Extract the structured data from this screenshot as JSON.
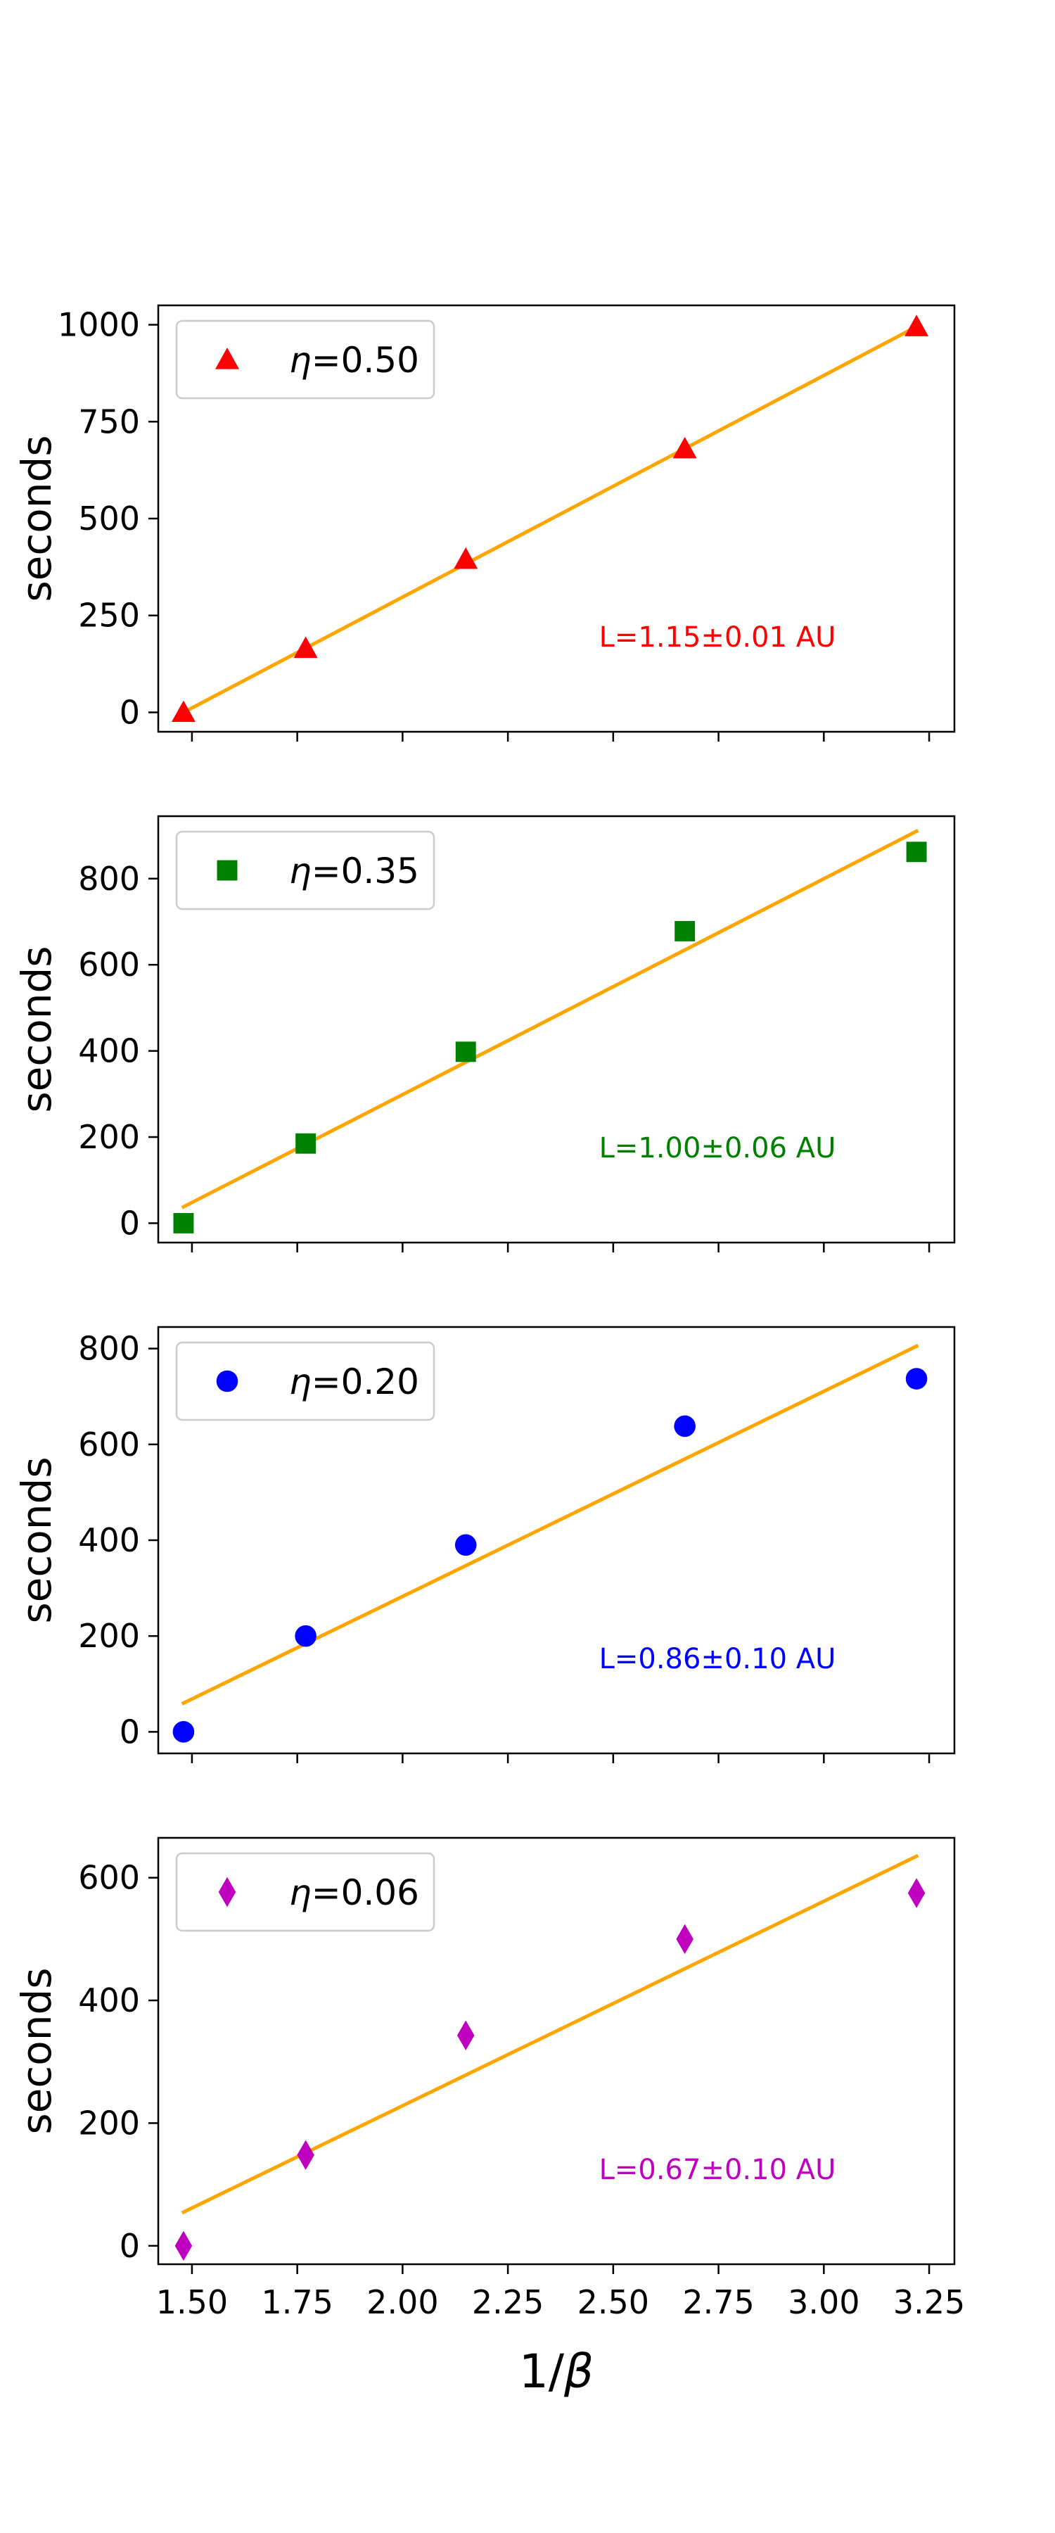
{
  "chart_data": [
    {
      "type": "scatter",
      "legend_label": "0.50",
      "legend_symbol": "η",
      "legend_position": "upper-left",
      "ylabel": "seconds",
      "xlabel": "",
      "x": [
        1.48,
        1.77,
        2.15,
        2.67,
        3.22
      ],
      "y": [
        0,
        165,
        395,
        680,
        995
      ],
      "fit": {
        "x": [
          1.48,
          3.22
        ],
        "y": [
          0,
          995
        ]
      },
      "ylim": [
        -50,
        1050
      ],
      "yticks": [
        0,
        250,
        500,
        750,
        1000
      ],
      "xlim": [
        1.42,
        3.31
      ],
      "xticks": [
        1.5,
        1.75,
        2.0,
        2.25,
        2.5,
        2.75,
        3.0,
        3.25
      ],
      "show_xticklabels": false,
      "marker": "triangle",
      "color": "#ff0000",
      "fit_color": "#ffa500",
      "annotation": "L=1.15±0.01 AU"
    },
    {
      "type": "scatter",
      "legend_label": "0.35",
      "legend_symbol": "η",
      "legend_position": "upper-left",
      "ylabel": "seconds",
      "xlabel": "",
      "x": [
        1.48,
        1.77,
        2.15,
        2.67,
        3.22
      ],
      "y": [
        0,
        185,
        398,
        678,
        862
      ],
      "fit": {
        "x": [
          1.48,
          3.22
        ],
        "y": [
          38,
          910
        ]
      },
      "ylim": [
        -45,
        945
      ],
      "yticks": [
        0,
        200,
        400,
        600,
        800
      ],
      "xlim": [
        1.42,
        3.31
      ],
      "xticks": [
        1.5,
        1.75,
        2.0,
        2.25,
        2.5,
        2.75,
        3.0,
        3.25
      ],
      "show_xticklabels": false,
      "marker": "square",
      "color": "#008000",
      "fit_color": "#ffa500",
      "annotation": "L=1.00±0.06 AU"
    },
    {
      "type": "scatter",
      "legend_label": "0.20",
      "legend_symbol": "η",
      "legend_position": "upper-left",
      "ylabel": "seconds",
      "xlabel": "",
      "x": [
        1.48,
        1.77,
        2.15,
        2.67,
        3.22
      ],
      "y": [
        0,
        200,
        390,
        638,
        737
      ],
      "fit": {
        "x": [
          1.48,
          3.22
        ],
        "y": [
          60,
          805
        ]
      },
      "ylim": [
        -45,
        845
      ],
      "yticks": [
        0,
        200,
        400,
        600,
        800
      ],
      "xlim": [
        1.42,
        3.31
      ],
      "xticks": [
        1.5,
        1.75,
        2.0,
        2.25,
        2.5,
        2.75,
        3.0,
        3.25
      ],
      "show_xticklabels": false,
      "marker": "circle",
      "color": "#0000ff",
      "fit_color": "#ffa500",
      "annotation": "L=0.86±0.10 AU"
    },
    {
      "type": "scatter",
      "legend_label": "0.06",
      "legend_symbol": "η",
      "legend_position": "upper-left",
      "ylabel": "seconds",
      "xlabel": "1/β",
      "x": [
        1.48,
        1.77,
        2.15,
        2.67,
        3.22
      ],
      "y": [
        0,
        148,
        343,
        500,
        575
      ],
      "fit": {
        "x": [
          1.48,
          3.22
        ],
        "y": [
          55,
          635
        ]
      },
      "ylim": [
        -30,
        665
      ],
      "yticks": [
        0,
        200,
        400,
        600
      ],
      "xlim": [
        1.42,
        3.31
      ],
      "xticks": [
        1.5,
        1.75,
        2.0,
        2.25,
        2.5,
        2.75,
        3.0,
        3.25
      ],
      "xticklabels": [
        "1.50",
        "1.75",
        "2.00",
        "2.25",
        "2.50",
        "2.75",
        "3.00",
        "3.25"
      ],
      "show_xticklabels": true,
      "marker": "diamond",
      "color": "#bf00bf",
      "fit_color": "#ffa500",
      "annotation": "L=0.67±0.10 AU"
    }
  ]
}
